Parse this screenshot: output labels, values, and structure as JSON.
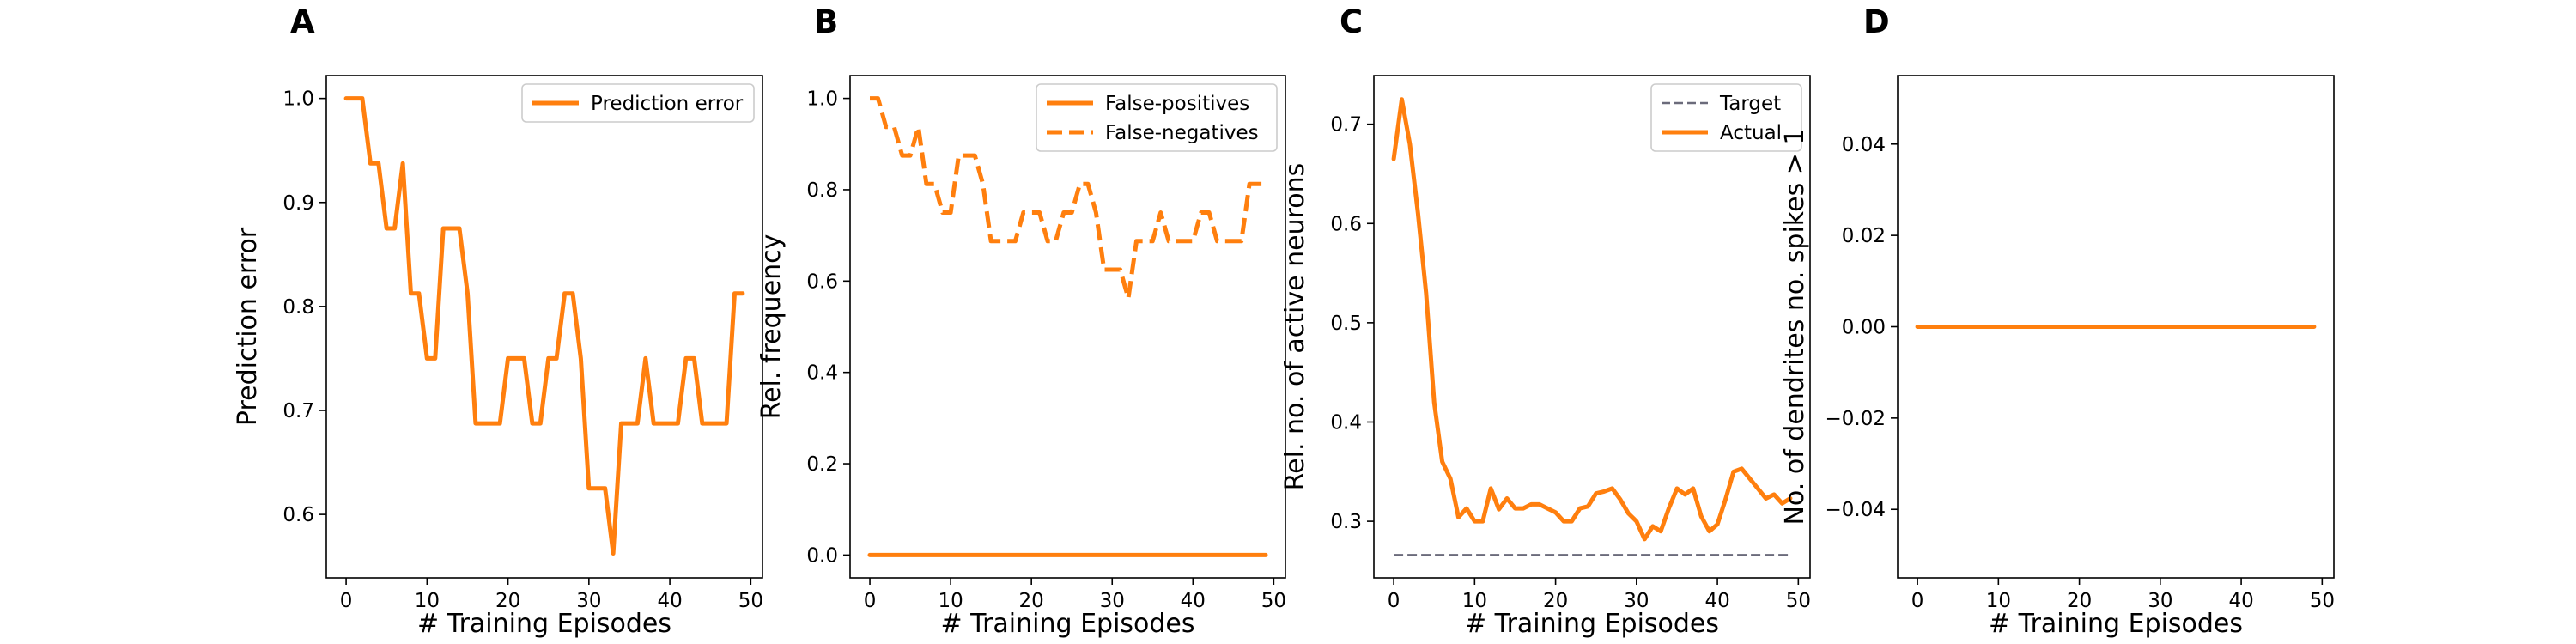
{
  "colors": {
    "orange": "#ff7f0e",
    "target": "#6b6b7b",
    "axis": "#000000",
    "legend_border": "#cccccc"
  },
  "chart_data": [
    {
      "panel": "A",
      "type": "line",
      "xlabel": "# Training Episodes",
      "ylabel": "Prediction error",
      "xlim": [
        -2.45,
        51.45
      ],
      "ylim": [
        0.539,
        1.022
      ],
      "xticks": [
        0,
        10,
        20,
        30,
        40,
        50
      ],
      "yticks": [
        0.6,
        0.7,
        0.8,
        0.9,
        1.0
      ],
      "ytick_format": 1,
      "legend_position": "upper right",
      "series": [
        {
          "name": "Prediction error",
          "color": "#ff7f0e",
          "dash": "solid",
          "x": [
            0,
            1,
            2,
            3,
            4,
            5,
            6,
            7,
            8,
            9,
            10,
            11,
            12,
            13,
            14,
            15,
            16,
            17,
            18,
            19,
            20,
            21,
            22,
            23,
            24,
            25,
            26,
            27,
            28,
            29,
            30,
            31,
            32,
            33,
            34,
            35,
            36,
            37,
            38,
            39,
            40,
            41,
            42,
            43,
            44,
            45,
            46,
            47,
            48,
            49
          ],
          "y": [
            1.0,
            1.0,
            1.0,
            0.9375,
            0.9375,
            0.875,
            0.875,
            0.9375,
            0.8125,
            0.8125,
            0.75,
            0.75,
            0.875,
            0.875,
            0.875,
            0.8125,
            0.6875,
            0.6875,
            0.6875,
            0.6875,
            0.75,
            0.75,
            0.75,
            0.6875,
            0.6875,
            0.75,
            0.75,
            0.8125,
            0.8125,
            0.75,
            0.625,
            0.625,
            0.625,
            0.5625,
            0.6875,
            0.6875,
            0.6875,
            0.75,
            0.6875,
            0.6875,
            0.6875,
            0.6875,
            0.75,
            0.75,
            0.6875,
            0.6875,
            0.6875,
            0.6875,
            0.8125,
            0.8125
          ]
        }
      ]
    },
    {
      "panel": "B",
      "type": "line",
      "xlabel": "# Training Episodes",
      "ylabel": "Rel. frequency",
      "xlim": [
        -2.45,
        51.45
      ],
      "ylim": [
        -0.05,
        1.05
      ],
      "xticks": [
        0,
        10,
        20,
        30,
        40,
        50
      ],
      "yticks": [
        0.0,
        0.2,
        0.4,
        0.6,
        0.8,
        1.0
      ],
      "ytick_format": 1,
      "legend_position": "upper right",
      "series": [
        {
          "name": "False-positives",
          "color": "#ff7f0e",
          "dash": "solid",
          "x": [
            0,
            1,
            2,
            3,
            4,
            5,
            6,
            7,
            8,
            9,
            10,
            11,
            12,
            13,
            14,
            15,
            16,
            17,
            18,
            19,
            20,
            21,
            22,
            23,
            24,
            25,
            26,
            27,
            28,
            29,
            30,
            31,
            32,
            33,
            34,
            35,
            36,
            37,
            38,
            39,
            40,
            41,
            42,
            43,
            44,
            45,
            46,
            47,
            48,
            49
          ],
          "y": [
            0,
            0,
            0,
            0,
            0,
            0,
            0,
            0,
            0,
            0,
            0,
            0,
            0,
            0,
            0,
            0,
            0,
            0,
            0,
            0,
            0,
            0,
            0,
            0,
            0,
            0,
            0,
            0,
            0,
            0,
            0,
            0,
            0,
            0,
            0,
            0,
            0,
            0,
            0,
            0,
            0,
            0,
            0,
            0,
            0,
            0,
            0,
            0,
            0,
            0
          ]
        },
        {
          "name": "False-negatives",
          "color": "#ff7f0e",
          "dash": "dashed",
          "x": [
            0,
            1,
            2,
            3,
            4,
            5,
            6,
            7,
            8,
            9,
            10,
            11,
            12,
            13,
            14,
            15,
            16,
            17,
            18,
            19,
            20,
            21,
            22,
            23,
            24,
            25,
            26,
            27,
            28,
            29,
            30,
            31,
            32,
            33,
            34,
            35,
            36,
            37,
            38,
            39,
            40,
            41,
            42,
            43,
            44,
            45,
            46,
            47,
            48,
            49
          ],
          "y": [
            1.0,
            1.0,
            0.9375,
            0.9375,
            0.875,
            0.875,
            0.9375,
            0.8125,
            0.8125,
            0.75,
            0.75,
            0.875,
            0.875,
            0.875,
            0.8125,
            0.6875,
            0.6875,
            0.6875,
            0.6875,
            0.75,
            0.75,
            0.75,
            0.6875,
            0.6875,
            0.75,
            0.75,
            0.8125,
            0.8125,
            0.75,
            0.625,
            0.625,
            0.625,
            0.5625,
            0.6875,
            0.6875,
            0.6875,
            0.75,
            0.6875,
            0.6875,
            0.6875,
            0.6875,
            0.75,
            0.75,
            0.6875,
            0.6875,
            0.6875,
            0.6875,
            0.8125,
            0.8125,
            0.8125
          ]
        }
      ]
    },
    {
      "panel": "C",
      "type": "line",
      "xlabel": "# Training Episodes",
      "ylabel": "Rel. no. of active neurons",
      "xlim": [
        -2.45,
        51.45
      ],
      "ylim": [
        0.243,
        0.749
      ],
      "xticks": [
        0,
        10,
        20,
        30,
        40,
        50
      ],
      "yticks": [
        0.3,
        0.4,
        0.5,
        0.6,
        0.7
      ],
      "ytick_format": 1,
      "legend_position": "upper right",
      "series": [
        {
          "name": "Target",
          "color": "#6b6b7b",
          "dash": "dashed",
          "x": [
            0,
            49
          ],
          "y": [
            0.266,
            0.266
          ]
        },
        {
          "name": "Actual",
          "color": "#ff7f0e",
          "dash": "solid",
          "x": [
            0,
            1,
            2,
            3,
            4,
            5,
            6,
            7,
            8,
            9,
            10,
            11,
            12,
            13,
            14,
            15,
            16,
            17,
            18,
            19,
            20,
            21,
            22,
            23,
            24,
            25,
            26,
            27,
            28,
            29,
            30,
            31,
            32,
            33,
            34,
            35,
            36,
            37,
            38,
            39,
            40,
            41,
            42,
            43,
            44,
            45,
            46,
            47,
            48,
            49
          ],
          "y": [
            0.665,
            0.725,
            0.68,
            0.61,
            0.53,
            0.42,
            0.36,
            0.343,
            0.304,
            0.313,
            0.3,
            0.3,
            0.333,
            0.312,
            0.323,
            0.313,
            0.313,
            0.317,
            0.317,
            0.313,
            0.309,
            0.3,
            0.3,
            0.313,
            0.315,
            0.328,
            0.33,
            0.333,
            0.322,
            0.308,
            0.3,
            0.282,
            0.295,
            0.29,
            0.313,
            0.333,
            0.327,
            0.333,
            0.305,
            0.29,
            0.297,
            0.322,
            0.35,
            0.353,
            0.343,
            0.333,
            0.323,
            0.327,
            0.318,
            0.323
          ]
        }
      ]
    },
    {
      "panel": "D",
      "type": "line",
      "xlabel": "# Training Episodes",
      "ylabel": "No. of dendrites no. spikes > 1",
      "xlim": [
        -2.45,
        51.45
      ],
      "ylim": [
        -0.055,
        0.055
      ],
      "xticks": [
        0,
        10,
        20,
        30,
        40,
        50
      ],
      "yticks": [
        -0.04,
        -0.02,
        0.0,
        0.02,
        0.04
      ],
      "ytick_format": 2,
      "legend_position": "none",
      "series": [
        {
          "color": "#ff7f0e",
          "dash": "solid",
          "x": [
            0,
            49
          ],
          "y": [
            0,
            0
          ]
        }
      ]
    }
  ]
}
